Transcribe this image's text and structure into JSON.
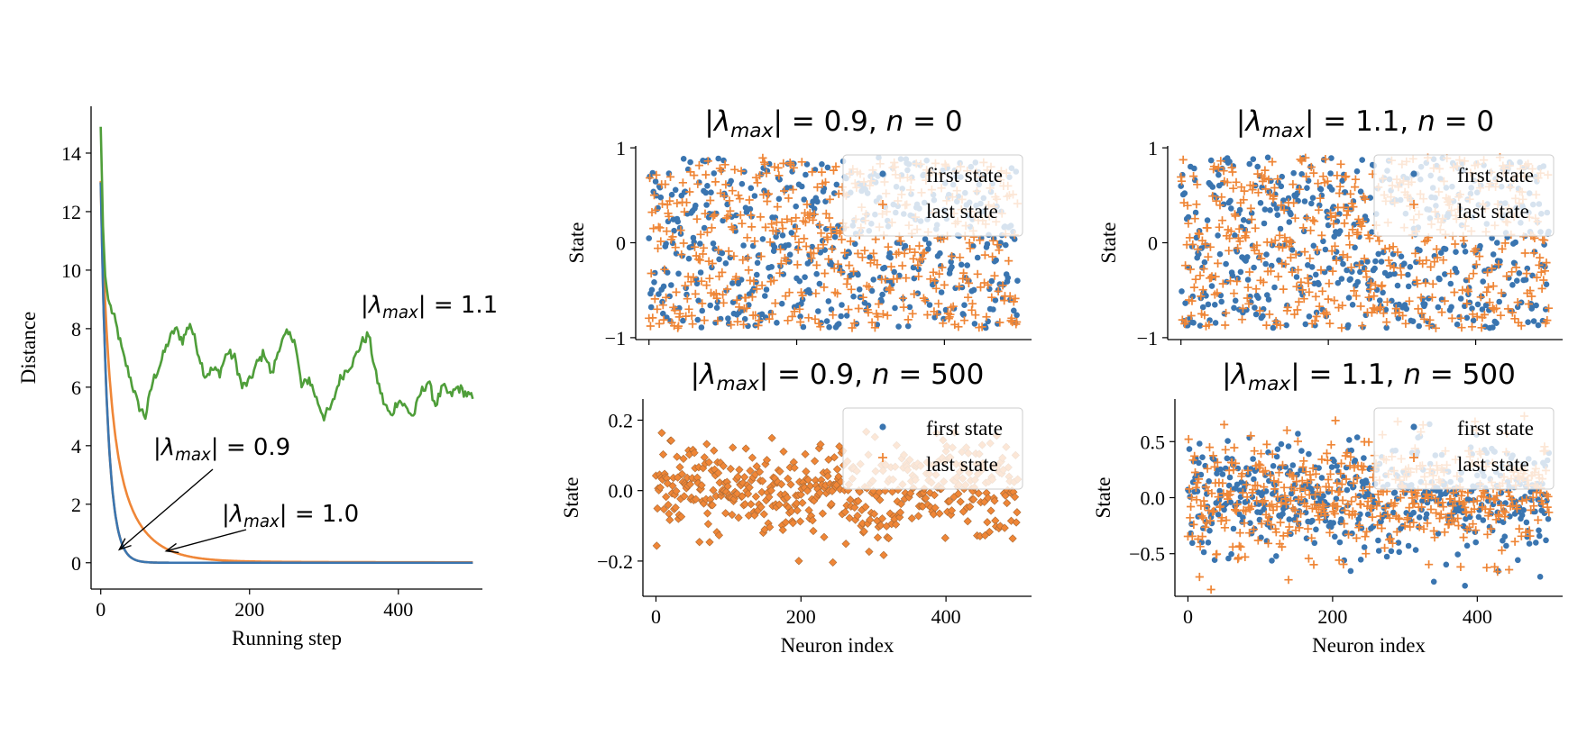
{
  "colors": {
    "blue": "#3a75b0",
    "orange": "#ef8637",
    "green": "#4f9e3a"
  },
  "chart_data": [
    {
      "type": "line",
      "title": "",
      "xlabel": "Running step",
      "ylabel": "Distance",
      "xlim": [
        -13,
        513
      ],
      "ylim": [
        -0.9,
        15.6
      ],
      "xticks": [
        0,
        200,
        400
      ],
      "yticks": [
        0,
        2,
        4,
        6,
        8,
        10,
        12,
        14
      ],
      "series": [
        {
          "name": "|λmax| = 0.9",
          "color": "blue",
          "decay": "fast",
          "start": 13.0,
          "end": 0.0
        },
        {
          "name": "|λmax| = 1.0",
          "color": "orange",
          "decay": "slow",
          "start": 13.0,
          "end": 0.05
        },
        {
          "name": "|λmax| = 1.1",
          "color": "green",
          "x": [
            0,
            3,
            6,
            10,
            15,
            20,
            30,
            40,
            50,
            60,
            70,
            80,
            90,
            100,
            110,
            120,
            130,
            140,
            150,
            160,
            170,
            180,
            190,
            200,
            210,
            220,
            230,
            240,
            250,
            260,
            270,
            280,
            290,
            300,
            310,
            320,
            330,
            340,
            350,
            360,
            370,
            380,
            390,
            400,
            410,
            420,
            430,
            440,
            450,
            460,
            470,
            480,
            490,
            500
          ],
          "y": [
            14.9,
            11.5,
            9.8,
            9.0,
            8.6,
            8.2,
            7.1,
            6.3,
            5.4,
            5.0,
            6.2,
            6.8,
            7.5,
            8.0,
            7.6,
            8.2,
            7.3,
            6.4,
            6.6,
            6.5,
            7.2,
            7.0,
            6.0,
            6.2,
            6.8,
            7.2,
            6.4,
            7.4,
            7.8,
            7.7,
            6.0,
            6.3,
            5.6,
            5.0,
            5.3,
            6.2,
            6.6,
            6.9,
            7.5,
            7.8,
            6.4,
            5.5,
            5.0,
            5.6,
            5.3,
            5.0,
            5.8,
            6.2,
            5.4,
            6.0,
            5.7,
            6.0,
            5.8,
            5.6
          ]
        }
      ],
      "annotations": [
        {
          "text": "|λmax| = 1.1",
          "series": "green"
        },
        {
          "text": "|λmax| = 0.9",
          "arrow_to_x": 25,
          "arrow_to_y": 0.45
        },
        {
          "text": "|λmax| = 1.0",
          "arrow_to_x": 88,
          "arrow_to_y": 0.4
        }
      ]
    },
    {
      "type": "scatter",
      "title": "|λmax| = 0.9, n = 0",
      "xlabel": "",
      "ylabel": "State",
      "xlim": [
        -18,
        518
      ],
      "ylim": [
        -1.02,
        1.02
      ],
      "xticks": [
        0,
        200,
        400
      ],
      "yticks": [
        -1,
        0,
        1
      ],
      "n_points": 500,
      "value_range": [
        -0.9,
        0.9
      ],
      "legend": [
        "first state",
        "last state"
      ],
      "legend_position": "upper right"
    },
    {
      "type": "scatter",
      "title": "|λmax| = 1.1, n = 0",
      "xlabel": "",
      "ylabel": "State",
      "xlim": [
        -18,
        518
      ],
      "ylim": [
        -1.02,
        1.02
      ],
      "xticks": [
        0,
        200,
        400
      ],
      "yticks": [
        -1,
        0,
        1
      ],
      "n_points": 500,
      "value_range": [
        -0.9,
        0.9
      ],
      "legend": [
        "first state",
        "last state"
      ],
      "legend_position": "upper right"
    },
    {
      "type": "scatter",
      "title": "|λmax| = 0.9, n = 500",
      "xlabel": "Neuron index",
      "ylabel": "State",
      "xlim": [
        -18,
        518
      ],
      "ylim": [
        -0.3,
        0.26
      ],
      "xticks": [
        0,
        200,
        400
      ],
      "yticks": [
        -0.2,
        0.0,
        0.2
      ],
      "n_points": 500,
      "value_spread": 0.07,
      "overlap": true,
      "legend": [
        "first state",
        "last state"
      ],
      "legend_position": "upper right"
    },
    {
      "type": "scatter",
      "title": "|λmax| = 1.1, n = 500",
      "xlabel": "Neuron index",
      "ylabel": "State",
      "xlim": [
        -18,
        518
      ],
      "ylim": [
        -0.88,
        0.88
      ],
      "xticks": [
        0,
        200,
        400
      ],
      "yticks": [
        -0.5,
        0.0,
        0.5
      ],
      "n_points": 500,
      "value_spread": 0.25,
      "overlap": false,
      "legend": [
        "first state",
        "last state"
      ],
      "legend_position": "upper right"
    }
  ],
  "labels": {
    "ytick_texts": {
      "p0": [
        "0",
        "2",
        "4",
        "6",
        "8",
        "10",
        "12",
        "14"
      ],
      "p1": [
        "−1",
        "0",
        "1"
      ],
      "p2": [
        "−1",
        "0",
        "1"
      ],
      "p3": [
        "−0.2",
        "0.0",
        "0.2"
      ],
      "p4": [
        "−0.5",
        "0.0",
        "0.5"
      ]
    },
    "xtick_texts": [
      "0",
      "200",
      "400"
    ]
  }
}
